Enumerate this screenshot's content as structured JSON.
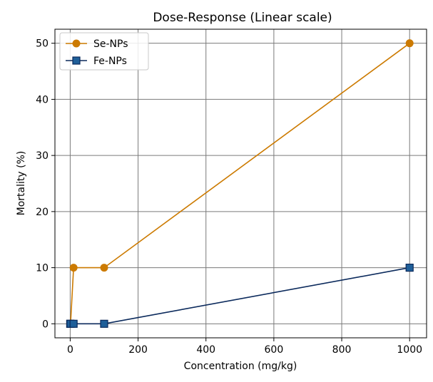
{
  "chart_data": {
    "type": "line",
    "title": "Dose-Response (Linear scale)",
    "xlabel": "Concentration (mg/kg)",
    "ylabel": "Mortality (%)",
    "xlim": [
      -45,
      1050
    ],
    "ylim": [
      -2.5,
      52.5
    ],
    "xticks": [
      0,
      200,
      400,
      600,
      800,
      1000
    ],
    "yticks": [
      0,
      10,
      20,
      30,
      40,
      50
    ],
    "grid": true,
    "legend_position": "top-left",
    "series": [
      {
        "name": "Se-NPs",
        "color": "#cc7a00",
        "marker": "circle",
        "x": [
          0,
          1,
          10,
          100,
          1000
        ],
        "y": [
          0,
          0,
          10,
          10,
          50
        ]
      },
      {
        "name": "Fe-NPs",
        "color": "#0b2a5c",
        "marker": "square",
        "marker_fill": "#1f5f99",
        "x": [
          0,
          1,
          10,
          100,
          1000
        ],
        "y": [
          0,
          0,
          0,
          0,
          10
        ]
      }
    ]
  }
}
